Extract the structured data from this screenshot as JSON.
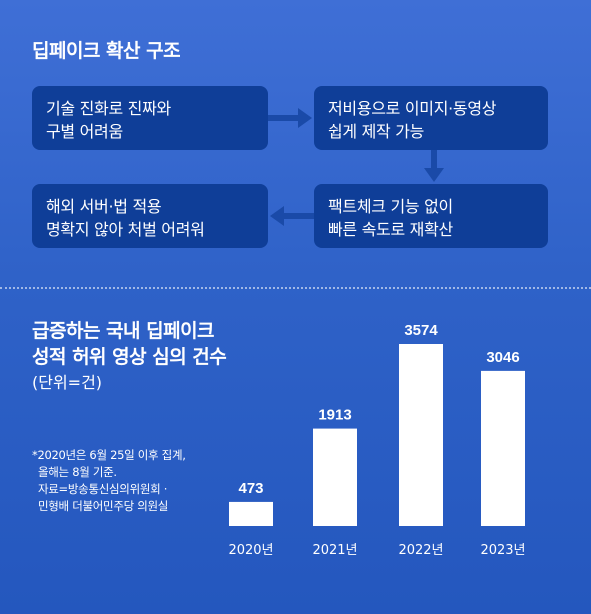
{
  "flow": {
    "title": "딥페이크 확산 구조",
    "steps": [
      {
        "lines": [
          "기술 진화로 진짜와",
          "구별 어려움"
        ]
      },
      {
        "lines": [
          "저비용으로 이미지·동영상",
          "쉽게 제작 가능"
        ]
      },
      {
        "lines": [
          "팩트체크 기능 없이",
          "빠른 속도로 재확산"
        ]
      },
      {
        "lines": [
          "해외 서버·법 적용",
          "명확지 않아 처벌 어려워"
        ]
      }
    ]
  },
  "chart_data": {
    "type": "bar",
    "title": "급증하는 국내 딥페이크 성적 허위 영상 심의 건수",
    "title_lines": [
      "급증하는 국내 딥페이크",
      "성적 허위 영상 심의 건수"
    ],
    "unit": "(단위=건)",
    "categories": [
      "2020년",
      "2021년",
      "2022년",
      "2023년"
    ],
    "values": [
      473,
      1913,
      3574,
      3046
    ],
    "value_labels": [
      "473",
      "1913",
      "3574",
      "3046"
    ],
    "ylim": [
      0,
      3574
    ],
    "bar_color": "#ffffff",
    "grid": false,
    "note_lines": [
      "*2020년은 6월 25일 이후 집계,",
      "올해는 8월 기준.",
      "자료=방송통신심의위원회 ·",
      "민형배 더불어민주당 의원실"
    ]
  },
  "colors": {
    "background": "#2f62c8",
    "box": "#0f3e98",
    "arrow": "#1a4aa8"
  }
}
